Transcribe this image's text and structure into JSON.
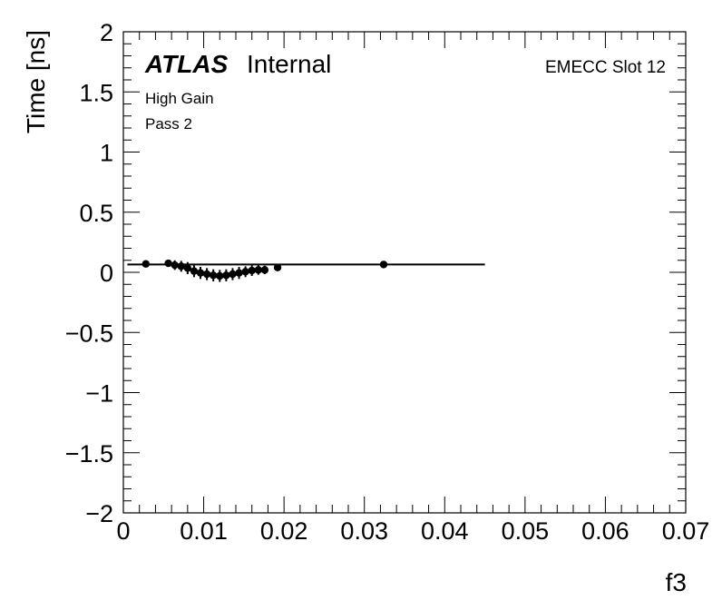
{
  "chart_data": {
    "type": "scatter",
    "title": "",
    "xlabel": "f3",
    "ylabel": "Time [ns]",
    "xlim": [
      0,
      0.07
    ],
    "ylim": [
      -2,
      2
    ],
    "x_ticks": [
      0,
      0.01,
      0.02,
      0.03,
      0.04,
      0.05,
      0.06,
      0.07
    ],
    "x_tick_labels": [
      "0",
      "0.01",
      "0.02",
      "0.03",
      "0.04",
      "0.05",
      "0.06",
      "0.07"
    ],
    "y_ticks": [
      -2,
      -1.5,
      -1,
      -0.5,
      0,
      0.5,
      1,
      1.5,
      2
    ],
    "y_tick_labels": [
      "−2",
      "−1.5",
      "−1",
      "−0.5",
      "0",
      "0.5",
      "1",
      "1.5",
      "2"
    ],
    "grid": false,
    "series": [
      {
        "marker": "circle",
        "color": "#000000",
        "points": [
          {
            "x": 0.0028,
            "y": 0.07,
            "err": 0.02
          },
          {
            "x": 0.0056,
            "y": 0.075,
            "err": 0.025
          },
          {
            "x": 0.0064,
            "y": 0.06,
            "err": 0.04
          },
          {
            "x": 0.0072,
            "y": 0.05,
            "err": 0.045
          },
          {
            "x": 0.008,
            "y": 0.035,
            "err": 0.05
          },
          {
            "x": 0.0088,
            "y": 0.01,
            "err": 0.05
          },
          {
            "x": 0.0096,
            "y": -0.005,
            "err": 0.05
          },
          {
            "x": 0.0104,
            "y": -0.015,
            "err": 0.05
          },
          {
            "x": 0.0112,
            "y": -0.025,
            "err": 0.05
          },
          {
            "x": 0.012,
            "y": -0.03,
            "err": 0.05
          },
          {
            "x": 0.0128,
            "y": -0.025,
            "err": 0.05
          },
          {
            "x": 0.0136,
            "y": -0.015,
            "err": 0.05
          },
          {
            "x": 0.0144,
            "y": -0.005,
            "err": 0.05
          },
          {
            "x": 0.0152,
            "y": 0.005,
            "err": 0.045
          },
          {
            "x": 0.016,
            "y": 0.015,
            "err": 0.045
          },
          {
            "x": 0.0168,
            "y": 0.02,
            "err": 0.04
          },
          {
            "x": 0.0176,
            "y": 0.02,
            "err": 0.035
          },
          {
            "x": 0.0192,
            "y": 0.04,
            "err": 0.03
          },
          {
            "x": 0.0324,
            "y": 0.065,
            "err": 0.02
          }
        ]
      }
    ],
    "fit_line": {
      "x": [
        0.0005,
        0.045
      ],
      "y": [
        0.065,
        0.065
      ],
      "color": "#000000"
    }
  },
  "labels": {
    "atlas": "ATLAS",
    "internal": "Internal",
    "region": "EMECC Slot 12",
    "gain": "High Gain",
    "pass": "Pass 2"
  }
}
